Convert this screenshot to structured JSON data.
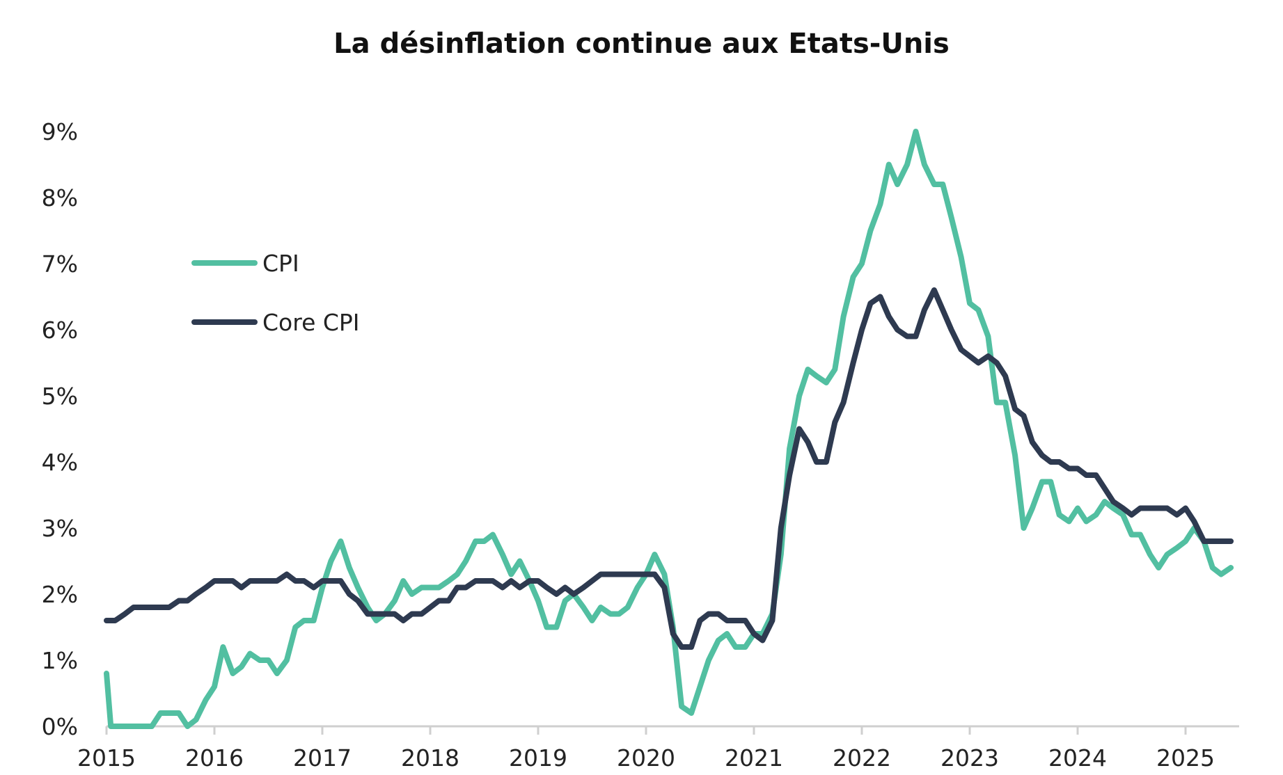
{
  "chart_data": {
    "type": "line",
    "title": "La désinflation continue aux Etats-Unis",
    "xlabel": "",
    "ylabel": "",
    "ylim": [
      0,
      9
    ],
    "xlim": [
      2015.0,
      2025.5
    ],
    "x_tick_labels": [
      "2015",
      "2016",
      "2017",
      "2018",
      "2019",
      "2020",
      "2021",
      "2022",
      "2023",
      "2024",
      "2025"
    ],
    "y_tick_labels": [
      "0%",
      "1%",
      "2%",
      "3%",
      "4%",
      "5%",
      "6%",
      "7%",
      "8%",
      "9%"
    ],
    "grid": false,
    "legend_position": "upper-left",
    "series": [
      {
        "name": "CPI",
        "color": "#52bfa1",
        "points": [
          [
            2015.0,
            0.8
          ],
          [
            2015.04,
            0.0
          ],
          [
            2015.17,
            -0.1
          ],
          [
            2015.25,
            0.0
          ],
          [
            2015.33,
            -0.1
          ],
          [
            2015.42,
            0.0
          ],
          [
            2015.5,
            0.2
          ],
          [
            2015.58,
            0.2
          ],
          [
            2015.67,
            0.2
          ],
          [
            2015.75,
            0.0
          ],
          [
            2015.83,
            0.1
          ],
          [
            2015.92,
            0.4
          ],
          [
            2016.0,
            0.6
          ],
          [
            2016.08,
            1.2
          ],
          [
            2016.17,
            0.8
          ],
          [
            2016.25,
            0.9
          ],
          [
            2016.33,
            1.1
          ],
          [
            2016.42,
            1.0
          ],
          [
            2016.5,
            1.0
          ],
          [
            2016.58,
            0.8
          ],
          [
            2016.67,
            1.0
          ],
          [
            2016.75,
            1.5
          ],
          [
            2016.83,
            1.6
          ],
          [
            2016.92,
            1.6
          ],
          [
            2017.0,
            2.1
          ],
          [
            2017.08,
            2.5
          ],
          [
            2017.17,
            2.8
          ],
          [
            2017.25,
            2.4
          ],
          [
            2017.33,
            2.1
          ],
          [
            2017.42,
            1.8
          ],
          [
            2017.5,
            1.6
          ],
          [
            2017.58,
            1.7
          ],
          [
            2017.67,
            1.9
          ],
          [
            2017.75,
            2.2
          ],
          [
            2017.83,
            2.0
          ],
          [
            2017.92,
            2.1
          ],
          [
            2018.0,
            2.1
          ],
          [
            2018.08,
            2.1
          ],
          [
            2018.17,
            2.2
          ],
          [
            2018.25,
            2.3
          ],
          [
            2018.33,
            2.5
          ],
          [
            2018.42,
            2.8
          ],
          [
            2018.5,
            2.8
          ],
          [
            2018.58,
            2.9
          ],
          [
            2018.67,
            2.6
          ],
          [
            2018.75,
            2.3
          ],
          [
            2018.83,
            2.5
          ],
          [
            2018.92,
            2.2
          ],
          [
            2019.0,
            1.9
          ],
          [
            2019.08,
            1.5
          ],
          [
            2019.17,
            1.5
          ],
          [
            2019.25,
            1.9
          ],
          [
            2019.33,
            2.0
          ],
          [
            2019.42,
            1.8
          ],
          [
            2019.5,
            1.6
          ],
          [
            2019.58,
            1.8
          ],
          [
            2019.67,
            1.7
          ],
          [
            2019.75,
            1.7
          ],
          [
            2019.83,
            1.8
          ],
          [
            2019.92,
            2.1
          ],
          [
            2020.0,
            2.3
          ],
          [
            2020.08,
            2.6
          ],
          [
            2020.17,
            2.3
          ],
          [
            2020.25,
            1.5
          ],
          [
            2020.33,
            0.3
          ],
          [
            2020.42,
            0.2
          ],
          [
            2020.5,
            0.6
          ],
          [
            2020.58,
            1.0
          ],
          [
            2020.67,
            1.3
          ],
          [
            2020.75,
            1.4
          ],
          [
            2020.83,
            1.2
          ],
          [
            2020.92,
            1.2
          ],
          [
            2021.0,
            1.4
          ],
          [
            2021.08,
            1.4
          ],
          [
            2021.17,
            1.7
          ],
          [
            2021.25,
            2.6
          ],
          [
            2021.33,
            4.2
          ],
          [
            2021.42,
            5.0
          ],
          [
            2021.5,
            5.4
          ],
          [
            2021.58,
            5.3
          ],
          [
            2021.67,
            5.2
          ],
          [
            2021.75,
            5.4
          ],
          [
            2021.83,
            6.2
          ],
          [
            2021.92,
            6.8
          ],
          [
            2022.0,
            7.0
          ],
          [
            2022.08,
            7.5
          ],
          [
            2022.17,
            7.9
          ],
          [
            2022.25,
            8.5
          ],
          [
            2022.33,
            8.2
          ],
          [
            2022.42,
            8.5
          ],
          [
            2022.5,
            9.0
          ],
          [
            2022.58,
            8.5
          ],
          [
            2022.67,
            8.2
          ],
          [
            2022.75,
            8.2
          ],
          [
            2022.83,
            7.7
          ],
          [
            2022.92,
            7.1
          ],
          [
            2023.0,
            6.4
          ],
          [
            2023.08,
            6.3
          ],
          [
            2023.17,
            5.9
          ],
          [
            2023.25,
            4.9
          ],
          [
            2023.33,
            4.9
          ],
          [
            2023.42,
            4.1
          ],
          [
            2023.5,
            3.0
          ],
          [
            2023.58,
            3.3
          ],
          [
            2023.67,
            3.7
          ],
          [
            2023.75,
            3.7
          ],
          [
            2023.83,
            3.2
          ],
          [
            2023.92,
            3.1
          ],
          [
            2024.0,
            3.3
          ],
          [
            2024.08,
            3.1
          ],
          [
            2024.17,
            3.2
          ],
          [
            2024.25,
            3.4
          ],
          [
            2024.33,
            3.3
          ],
          [
            2024.42,
            3.2
          ],
          [
            2024.5,
            2.9
          ],
          [
            2024.58,
            2.9
          ],
          [
            2024.67,
            2.6
          ],
          [
            2024.75,
            2.4
          ],
          [
            2024.83,
            2.6
          ],
          [
            2024.92,
            2.7
          ],
          [
            2025.0,
            2.8
          ],
          [
            2025.08,
            3.0
          ],
          [
            2025.17,
            2.8
          ],
          [
            2025.25,
            2.4
          ],
          [
            2025.33,
            2.3
          ],
          [
            2025.42,
            2.4
          ]
        ]
      },
      {
        "name": "Core CPI",
        "color": "#2e3a50",
        "points": [
          [
            2015.0,
            1.6
          ],
          [
            2015.08,
            1.6
          ],
          [
            2015.17,
            1.7
          ],
          [
            2015.25,
            1.8
          ],
          [
            2015.33,
            1.8
          ],
          [
            2015.42,
            1.8
          ],
          [
            2015.5,
            1.8
          ],
          [
            2015.58,
            1.8
          ],
          [
            2015.67,
            1.9
          ],
          [
            2015.75,
            1.9
          ],
          [
            2015.83,
            2.0
          ],
          [
            2015.92,
            2.1
          ],
          [
            2016.0,
            2.2
          ],
          [
            2016.08,
            2.2
          ],
          [
            2016.17,
            2.2
          ],
          [
            2016.25,
            2.1
          ],
          [
            2016.33,
            2.2
          ],
          [
            2016.42,
            2.2
          ],
          [
            2016.5,
            2.2
          ],
          [
            2016.58,
            2.2
          ],
          [
            2016.67,
            2.3
          ],
          [
            2016.75,
            2.2
          ],
          [
            2016.83,
            2.2
          ],
          [
            2016.92,
            2.1
          ],
          [
            2017.0,
            2.2
          ],
          [
            2017.08,
            2.2
          ],
          [
            2017.17,
            2.2
          ],
          [
            2017.25,
            2.0
          ],
          [
            2017.33,
            1.9
          ],
          [
            2017.42,
            1.7
          ],
          [
            2017.5,
            1.7
          ],
          [
            2017.58,
            1.7
          ],
          [
            2017.67,
            1.7
          ],
          [
            2017.75,
            1.6
          ],
          [
            2017.83,
            1.7
          ],
          [
            2017.92,
            1.7
          ],
          [
            2018.0,
            1.8
          ],
          [
            2018.08,
            1.9
          ],
          [
            2018.17,
            1.9
          ],
          [
            2018.25,
            2.1
          ],
          [
            2018.33,
            2.1
          ],
          [
            2018.42,
            2.2
          ],
          [
            2018.5,
            2.2
          ],
          [
            2018.58,
            2.2
          ],
          [
            2018.67,
            2.1
          ],
          [
            2018.75,
            2.2
          ],
          [
            2018.83,
            2.1
          ],
          [
            2018.92,
            2.2
          ],
          [
            2019.0,
            2.2
          ],
          [
            2019.08,
            2.1
          ],
          [
            2019.17,
            2.0
          ],
          [
            2019.25,
            2.1
          ],
          [
            2019.33,
            2.0
          ],
          [
            2019.42,
            2.1
          ],
          [
            2019.5,
            2.2
          ],
          [
            2019.58,
            2.3
          ],
          [
            2019.67,
            2.3
          ],
          [
            2019.75,
            2.3
          ],
          [
            2019.83,
            2.3
          ],
          [
            2019.92,
            2.3
          ],
          [
            2020.0,
            2.3
          ],
          [
            2020.08,
            2.3
          ],
          [
            2020.17,
            2.1
          ],
          [
            2020.25,
            1.4
          ],
          [
            2020.33,
            1.2
          ],
          [
            2020.42,
            1.2
          ],
          [
            2020.5,
            1.6
          ],
          [
            2020.58,
            1.7
          ],
          [
            2020.67,
            1.7
          ],
          [
            2020.75,
            1.6
          ],
          [
            2020.83,
            1.6
          ],
          [
            2020.92,
            1.6
          ],
          [
            2021.0,
            1.4
          ],
          [
            2021.08,
            1.3
          ],
          [
            2021.17,
            1.6
          ],
          [
            2021.25,
            3.0
          ],
          [
            2021.33,
            3.8
          ],
          [
            2021.42,
            4.5
          ],
          [
            2021.5,
            4.3
          ],
          [
            2021.58,
            4.0
          ],
          [
            2021.67,
            4.0
          ],
          [
            2021.75,
            4.6
          ],
          [
            2021.83,
            4.9
          ],
          [
            2021.92,
            5.5
          ],
          [
            2022.0,
            6.0
          ],
          [
            2022.08,
            6.4
          ],
          [
            2022.17,
            6.5
          ],
          [
            2022.25,
            6.2
          ],
          [
            2022.33,
            6.0
          ],
          [
            2022.42,
            5.9
          ],
          [
            2022.5,
            5.9
          ],
          [
            2022.58,
            6.3
          ],
          [
            2022.67,
            6.6
          ],
          [
            2022.75,
            6.3
          ],
          [
            2022.83,
            6.0
          ],
          [
            2022.92,
            5.7
          ],
          [
            2023.0,
            5.6
          ],
          [
            2023.08,
            5.5
          ],
          [
            2023.17,
            5.6
          ],
          [
            2023.25,
            5.5
          ],
          [
            2023.33,
            5.3
          ],
          [
            2023.42,
            4.8
          ],
          [
            2023.5,
            4.7
          ],
          [
            2023.58,
            4.3
          ],
          [
            2023.67,
            4.1
          ],
          [
            2023.75,
            4.0
          ],
          [
            2023.83,
            4.0
          ],
          [
            2023.92,
            3.9
          ],
          [
            2024.0,
            3.9
          ],
          [
            2024.08,
            3.8
          ],
          [
            2024.17,
            3.8
          ],
          [
            2024.25,
            3.6
          ],
          [
            2024.33,
            3.4
          ],
          [
            2024.42,
            3.3
          ],
          [
            2024.5,
            3.2
          ],
          [
            2024.58,
            3.3
          ],
          [
            2024.67,
            3.3
          ],
          [
            2024.75,
            3.3
          ],
          [
            2024.83,
            3.3
          ],
          [
            2024.92,
            3.2
          ],
          [
            2025.0,
            3.3
          ],
          [
            2025.08,
            3.1
          ],
          [
            2025.17,
            2.8
          ],
          [
            2025.25,
            2.8
          ],
          [
            2025.33,
            2.8
          ],
          [
            2025.42,
            2.8
          ]
        ]
      }
    ]
  }
}
